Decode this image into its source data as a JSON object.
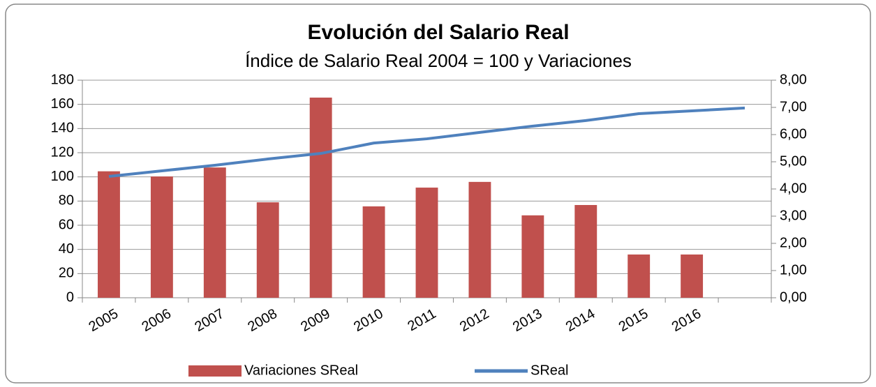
{
  "chart_data": {
    "type": "bar-line",
    "title": "Evolución del Salario Real",
    "subtitle": "Índice de Salario Real 2004 = 100 y Variaciones",
    "categories": [
      "2005",
      "2006",
      "2007",
      "2008",
      "2009",
      "2010",
      "2011",
      "2012",
      "2013",
      "2014",
      "2015",
      "2016",
      null
    ],
    "series": [
      {
        "name": "Variaciones SReal",
        "type": "bar",
        "axis": "y2",
        "color": "#c0504d",
        "values": [
          4.65,
          4.46,
          4.79,
          3.51,
          7.36,
          3.36,
          4.05,
          4.26,
          3.03,
          3.41,
          1.59,
          1.59,
          null
        ]
      },
      {
        "name": "SReal",
        "type": "line",
        "axis": "y",
        "color": "#4f81bd",
        "values": [
          100.4,
          105,
          109.6,
          114.8,
          119.4,
          128,
          131.5,
          136.8,
          142,
          146.6,
          152.3,
          154.6,
          157
        ]
      }
    ],
    "ylim": [
      0,
      180
    ],
    "yticks": [
      0,
      20,
      40,
      60,
      80,
      100,
      120,
      140,
      160,
      180
    ],
    "y2lim": [
      0,
      8
    ],
    "y2ticks": [
      {
        "value": 0,
        "label": "0,00"
      },
      {
        "value": 1,
        "label": "1,00"
      },
      {
        "value": 2,
        "label": "2,00"
      },
      {
        "value": 3,
        "label": "3,00"
      },
      {
        "value": 4,
        "label": "4,00"
      },
      {
        "value": 5,
        "label": "5,00"
      },
      {
        "value": 6,
        "label": "6,00"
      },
      {
        "value": 7,
        "label": "7,00"
      },
      {
        "value": 8,
        "label": "8,00"
      }
    ],
    "grid": true,
    "legend": "bottom"
  }
}
